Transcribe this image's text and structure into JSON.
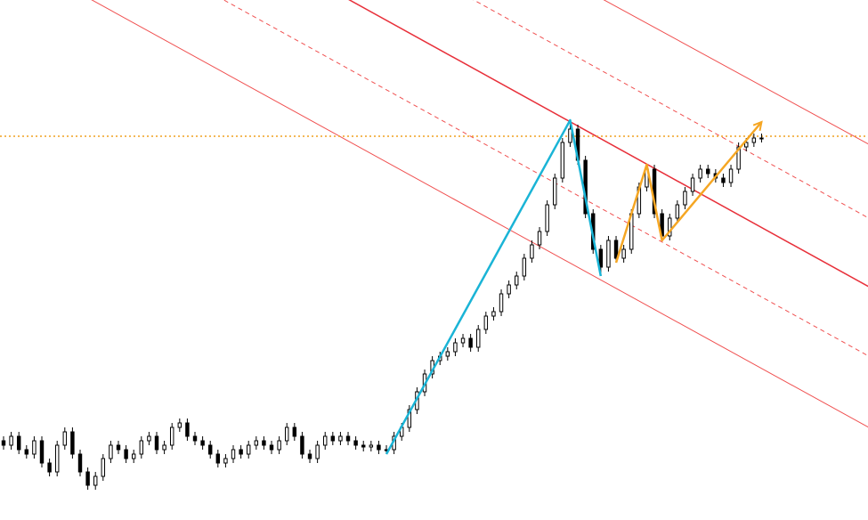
{
  "chart_data": {
    "type": "candlestick",
    "xlim": [
      -0.465,
      112.9
    ],
    "ylim": [
      0,
      584
    ],
    "up_color": "#ffffff",
    "down_color": "#000000",
    "wick_color": "#000000",
    "open": [
      89,
      84,
      94,
      79,
      74,
      89,
      64,
      54,
      84,
      99,
      74,
      54,
      39,
      49,
      69,
      84,
      79,
      69,
      74,
      89,
      94,
      79,
      84,
      104,
      109,
      94,
      89,
      84,
      74,
      64,
      69,
      79,
      74,
      84,
      89,
      84,
      79,
      89,
      104,
      94,
      74,
      69,
      84,
      94,
      89,
      94,
      89,
      84,
      82,
      84,
      79,
      79,
      94,
      104,
      124,
      144,
      164,
      179,
      184,
      189,
      199,
      204,
      194,
      214,
      229,
      234,
      254,
      264,
      274,
      294,
      309,
      324,
      354,
      384,
      424,
      439,
      404,
      344,
      304,
      284,
      314,
      294,
      304,
      344,
      374,
      394,
      344,
      319,
      339,
      354,
      369,
      384,
      394,
      389,
      384,
      379,
      394,
      419,
      424,
      429
    ],
    "close": [
      84,
      94,
      79,
      74,
      89,
      64,
      54,
      84,
      99,
      74,
      54,
      39,
      49,
      69,
      84,
      79,
      69,
      74,
      89,
      94,
      79,
      84,
      104,
      109,
      94,
      89,
      84,
      74,
      64,
      69,
      79,
      74,
      84,
      89,
      84,
      79,
      89,
      104,
      94,
      74,
      69,
      84,
      94,
      89,
      94,
      89,
      84,
      82,
      84,
      79,
      79,
      94,
      104,
      124,
      144,
      164,
      179,
      184,
      189,
      199,
      204,
      194,
      214,
      229,
      234,
      254,
      264,
      274,
      294,
      309,
      324,
      354,
      384,
      424,
      439,
      404,
      344,
      304,
      284,
      314,
      294,
      304,
      344,
      374,
      394,
      344,
      319,
      339,
      354,
      369,
      384,
      394,
      389,
      384,
      379,
      394,
      419,
      424,
      429,
      429
    ],
    "high": [
      94,
      99,
      99,
      84,
      94,
      94,
      69,
      89,
      104,
      104,
      79,
      59,
      54,
      74,
      89,
      89,
      84,
      79,
      94,
      99,
      99,
      89,
      109,
      114,
      114,
      99,
      94,
      89,
      79,
      74,
      84,
      84,
      89,
      94,
      94,
      89,
      94,
      109,
      109,
      99,
      79,
      89,
      99,
      99,
      99,
      99,
      94,
      89,
      89,
      89,
      84,
      99,
      109,
      129,
      149,
      169,
      184,
      189,
      194,
      204,
      209,
      209,
      219,
      234,
      239,
      259,
      269,
      279,
      299,
      314,
      329,
      359,
      389,
      429,
      449,
      444,
      409,
      349,
      309,
      319,
      319,
      309,
      349,
      379,
      399,
      399,
      349,
      344,
      359,
      374,
      389,
      399,
      399,
      394,
      389,
      399,
      424,
      429,
      434,
      434
    ],
    "low": [
      79,
      79,
      74,
      69,
      69,
      59,
      49,
      49,
      79,
      69,
      49,
      34,
      34,
      44,
      64,
      74,
      64,
      64,
      69,
      84,
      74,
      74,
      79,
      99,
      89,
      84,
      79,
      69,
      59,
      59,
      64,
      69,
      69,
      79,
      79,
      74,
      74,
      84,
      89,
      69,
      64,
      64,
      79,
      84,
      84,
      84,
      79,
      77,
      77,
      74,
      74,
      74,
      89,
      99,
      119,
      139,
      159,
      174,
      179,
      184,
      194,
      189,
      189,
      209,
      224,
      229,
      249,
      259,
      269,
      289,
      304,
      319,
      349,
      379,
      419,
      399,
      339,
      299,
      274,
      279,
      289,
      289,
      299,
      339,
      369,
      339,
      314,
      314,
      334,
      349,
      364,
      379,
      384,
      379,
      374,
      374,
      389,
      414,
      419,
      424
    ],
    "zigzags": [
      {
        "color": "#1ab4d6",
        "x": [
          50,
          74,
          78
        ],
        "values": [
          74,
          449,
          274
        ]
      },
      {
        "color": "#f5a623",
        "x": [
          80,
          84,
          86,
          99
        ],
        "values": [
          289,
          399,
          314,
          447
        ],
        "arrow": true
      }
    ],
    "channel_lines": [
      {
        "color": "#f05050",
        "style": "solid",
        "width": 1,
        "x": [
          -0.5,
          113
        ],
        "values": [
          641,
          104
        ]
      },
      {
        "color": "#f05050",
        "style": "dashed",
        "width": 1,
        "x": [
          -0.5,
          113
        ],
        "values": [
          723,
          184
        ]
      },
      {
        "color": "#e8303a",
        "style": "solid",
        "width": 1.5,
        "x": [
          -0.5,
          113
        ],
        "values": [
          801,
          262
        ]
      },
      {
        "color": "#f05050",
        "style": "dashed",
        "width": 1,
        "x": [
          -0.5,
          113
        ],
        "values": [
          878,
          339
        ]
      },
      {
        "color": "#f05050",
        "style": "solid",
        "width": 1,
        "x": [
          -0.5,
          113
        ],
        "values": [
          954,
          422
        ]
      }
    ],
    "hline": {
      "value": 431,
      "color": "#f0a020",
      "style": "dotted"
    }
  }
}
